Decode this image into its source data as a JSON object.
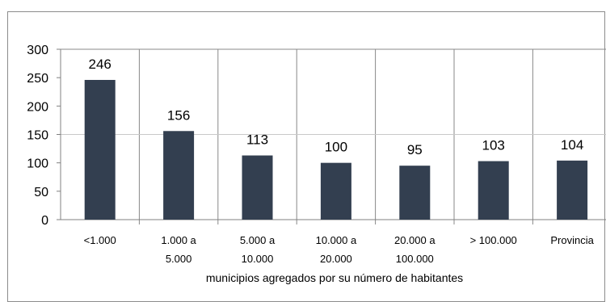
{
  "chart_data": {
    "type": "bar",
    "categories": [
      [
        "<1.000"
      ],
      [
        "1.000 a",
        "5.000"
      ],
      [
        "5.000 a",
        "10.000"
      ],
      [
        "10.000 a",
        "20.000"
      ],
      [
        "20.000 a",
        "100.000"
      ],
      [
        "> 100.000"
      ],
      [
        "Provincia"
      ]
    ],
    "values": [
      246,
      156,
      113,
      100,
      95,
      103,
      104
    ],
    "xlabel": "municipios agregados por su número de habitantes",
    "ylim": [
      0,
      300
    ],
    "yticks": [
      0,
      50,
      100,
      150,
      200,
      250,
      300
    ],
    "grid": "vertical",
    "bar_color": "#333f50",
    "grid_color": "#888888"
  }
}
